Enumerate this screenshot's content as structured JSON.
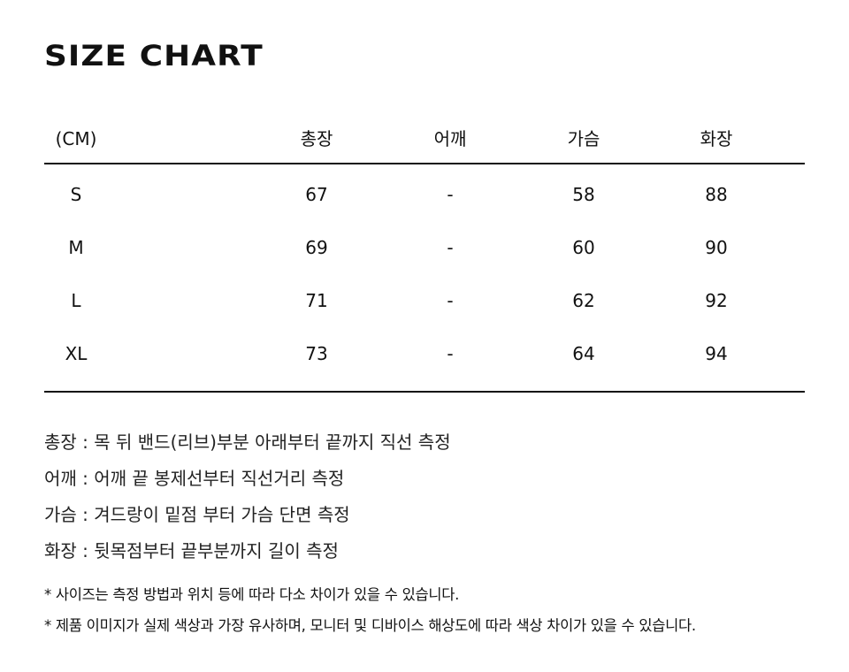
{
  "title": "SIZE CHART",
  "table": {
    "headers": [
      "(CM)",
      "총장",
      "어깨",
      "가슴",
      "화장"
    ],
    "rows": [
      [
        "S",
        "67",
        "-",
        "58",
        "88"
      ],
      [
        "M",
        "69",
        "-",
        "60",
        "90"
      ],
      [
        "L",
        "71",
        "-",
        "62",
        "92"
      ],
      [
        "XL",
        "73",
        "-",
        "64",
        "94"
      ]
    ]
  },
  "notes": [
    "총장 : 목 뒤 밴드(리브)부분 아래부터 끝까지 직선 측정",
    "어깨 : 어깨 끝 봉제선부터 직선거리 측정",
    "가슴 : 겨드랑이 밑점 부터 가슴 단면 측정",
    "화장 : 뒷목점부터 끝부분까지 길이 측정"
  ],
  "footnotes": [
    "* 사이즈는 측정 방법과 위치 등에 따라 다소 차이가 있을 수 있습니다.",
    "* 제품 이미지가 실제 색상과 가장 유사하며, 모니터 및 디바이스 해상도에 따라 색상 차이가 있을 수 있습니다."
  ]
}
